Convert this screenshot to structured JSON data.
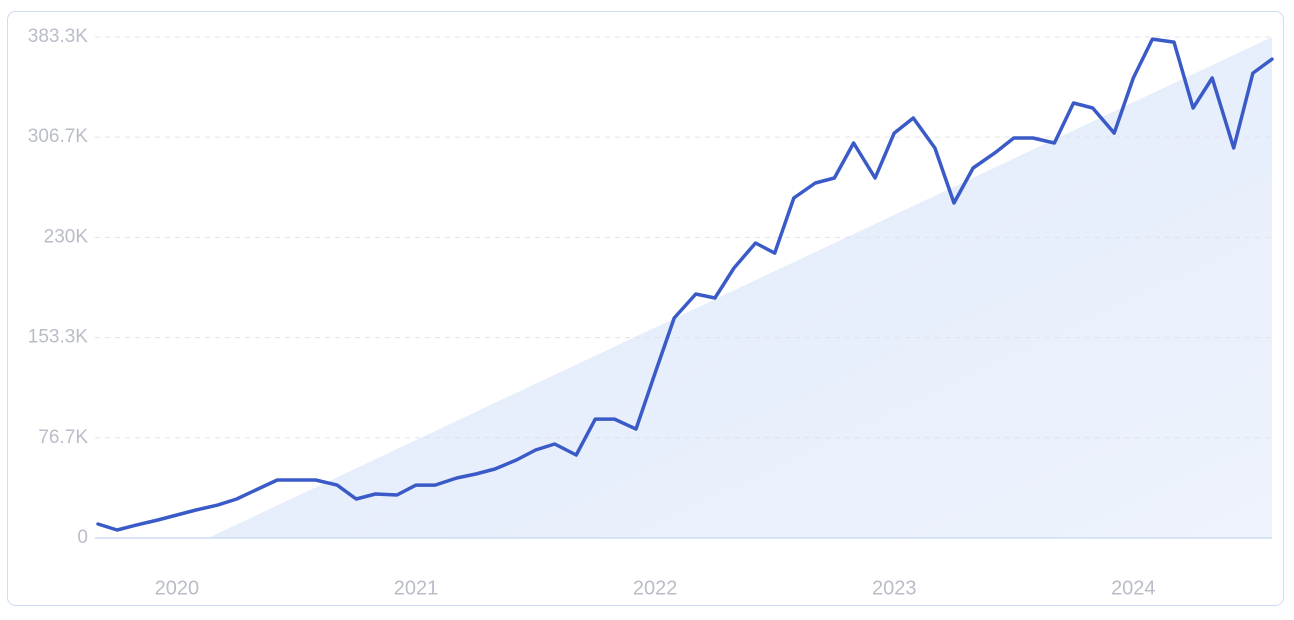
{
  "chart_data": {
    "type": "line",
    "x": [
      2019.67,
      2019.75,
      2019.83,
      2019.92,
      2020.0,
      2020.08,
      2020.17,
      2020.25,
      2020.33,
      2020.42,
      2020.5,
      2020.58,
      2020.67,
      2020.75,
      2020.83,
      2020.92,
      2021.0,
      2021.08,
      2021.17,
      2021.25,
      2021.33,
      2021.42,
      2021.5,
      2021.58,
      2021.67,
      2021.75,
      2021.83,
      2021.92,
      2022.0,
      2022.08,
      2022.17,
      2022.25,
      2022.33,
      2022.42,
      2022.5,
      2022.58,
      2022.67,
      2022.75,
      2022.83,
      2022.92,
      2023.0,
      2023.08,
      2023.17,
      2023.25,
      2023.33,
      2023.42,
      2023.5,
      2023.58,
      2023.67,
      2023.75,
      2023.83,
      2023.92,
      2024.0,
      2024.08,
      2024.17,
      2024.25,
      2024.33,
      2024.42,
      2024.5,
      2024.58
    ],
    "values": [
      10700,
      6100,
      9900,
      13800,
      17600,
      21400,
      25200,
      29800,
      36700,
      44400,
      44400,
      44400,
      40500,
      29800,
      33700,
      32900,
      40500,
      40500,
      45900,
      49000,
      52800,
      59700,
      67300,
      71900,
      63500,
      91000,
      91000,
      83400,
      126200,
      168300,
      186700,
      183600,
      206600,
      225700,
      218000,
      260100,
      271600,
      275400,
      302200,
      275400,
      309800,
      321300,
      298400,
      256300,
      283100,
      294500,
      306000,
      306000,
      302200,
      332800,
      329000,
      309800,
      351900,
      381700,
      379400,
      329000,
      351900,
      298400,
      355700,
      366400
    ],
    "color": "#3a5bc7",
    "xlim": [
      2019.67,
      2024.58
    ],
    "xticks": [
      2020,
      2021,
      2022,
      2023,
      2024
    ],
    "ylim": [
      0,
      383300
    ],
    "yticks": [
      0,
      {
        "value": 76700,
        "label": "76.7K"
      },
      {
        "value": 153300,
        "label": "153.3K"
      },
      {
        "value": 230000,
        "label": "230K"
      },
      {
        "value": 306700,
        "label": "306.7K"
      },
      {
        "value": 383300,
        "label": "383.3K"
      }
    ],
    "grid": true
  }
}
